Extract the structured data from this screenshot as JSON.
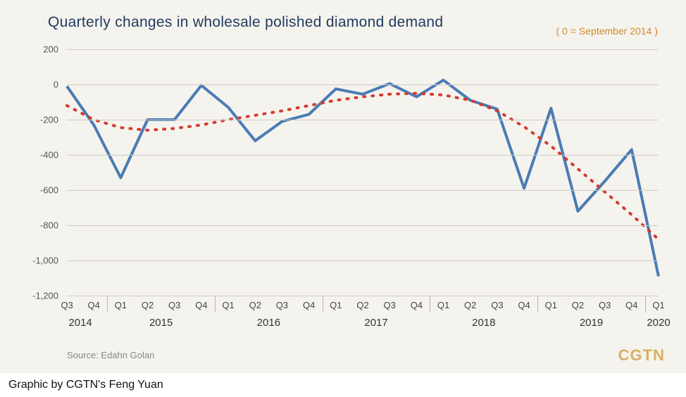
{
  "title": "Quarterly changes in wholesale polished diamond demand",
  "baseline_note": "( 0 = September 2014 )",
  "source": "Source: Edahn Golan",
  "logo": "CGTN",
  "footer": "Graphic by CGTN's Feng Yuan",
  "chart": {
    "type": "line",
    "background_color": "#f5f3ed",
    "grid_color": "#cfccc4",
    "ylim": [
      -1200,
      200
    ],
    "ytick_step": 200,
    "yticks": [
      200,
      0,
      -200,
      -400,
      -600,
      -800,
      -1000,
      -1200
    ],
    "yticks_fmt": [
      "200",
      "0",
      "-200",
      "-400",
      "-600",
      "-800",
      "-1,000",
      "-1,200"
    ],
    "x_quarters": [
      "Q3",
      "Q4",
      "Q1",
      "Q2",
      "Q3",
      "Q4",
      "Q1",
      "Q2",
      "Q3",
      "Q4",
      "Q1",
      "Q2",
      "Q3",
      "Q4",
      "Q1",
      "Q2",
      "Q3",
      "Q4",
      "Q1",
      "Q2",
      "Q3",
      "Q4",
      "Q1"
    ],
    "x_years": [
      {
        "label": "2014",
        "center_idx": 0.5,
        "sep_after_idx": 1.5
      },
      {
        "label": "2015",
        "center_idx": 3.5,
        "sep_after_idx": 5.5
      },
      {
        "label": "2016",
        "center_idx": 7.5,
        "sep_after_idx": 9.5
      },
      {
        "label": "2017",
        "center_idx": 11.5,
        "sep_after_idx": 13.5
      },
      {
        "label": "2018",
        "center_idx": 15.5,
        "sep_after_idx": 17.5
      },
      {
        "label": "2019",
        "center_idx": 19.5,
        "sep_after_idx": 21.5
      },
      {
        "label": "2020",
        "center_idx": 22
      }
    ],
    "series_main": {
      "color": "#4a7bb5",
      "line_width": 4,
      "values": [
        -10,
        -230,
        -530,
        -200,
        -200,
        -5,
        -130,
        -320,
        -210,
        -170,
        -25,
        -55,
        5,
        -70,
        25,
        -90,
        -140,
        -590,
        -135,
        -720,
        -550,
        -370,
        -1090
      ]
    },
    "series_trend": {
      "color": "#d43b2e",
      "line_width": 4,
      "dash": "2 10",
      "linecap": "round",
      "values": [
        -120,
        -200,
        -245,
        -260,
        -250,
        -230,
        -200,
        -175,
        -150,
        -120,
        -90,
        -70,
        -55,
        -50,
        -60,
        -90,
        -150,
        -240,
        -350,
        -480,
        -610,
        -740,
        -880
      ]
    }
  }
}
